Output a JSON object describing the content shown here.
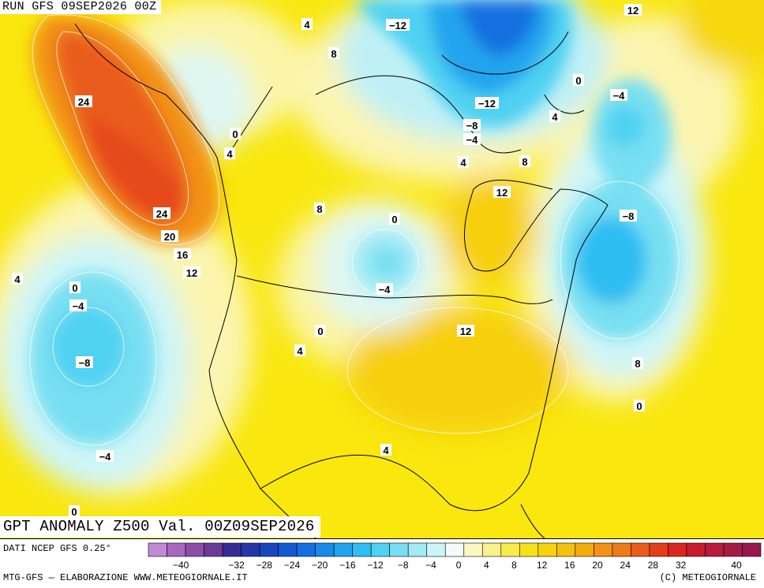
{
  "header": {
    "run_title": "RUN GFS 09SEP2026 00Z"
  },
  "map": {
    "caption": "GPT ANOMALY Z500 Val. 00Z09SEP2026",
    "contour_labels": [
      "24",
      "24",
      "20",
      "16",
      "12",
      "0",
      "4",
      "8",
      "4",
      "4",
      "8",
      "-12",
      "-12",
      "-8",
      "-4",
      "4",
      "8",
      "12",
      "0",
      "-4",
      "0",
      "4",
      "12",
      "-8",
      "-4",
      "0",
      "4",
      "12",
      "0",
      "-4",
      "-8",
      "-4",
      "0",
      "4",
      "8",
      "0"
    ]
  },
  "colorbar": {
    "ticks": [
      "-40",
      "-32",
      "-28",
      "-24",
      "-20",
      "-16",
      "-12",
      "-8",
      "-4",
      "0",
      "4",
      "8",
      "12",
      "16",
      "20",
      "24",
      "28",
      "32",
      "40"
    ],
    "colors": [
      "#c08ad4",
      "#a968c0",
      "#8e4ea8",
      "#6c3a98",
      "#3a2a95",
      "#2536a8",
      "#1846bf",
      "#1358d4",
      "#1470e0",
      "#1a8ae8",
      "#20a4ee",
      "#2fbdf2",
      "#4fd1f2",
      "#78dff2",
      "#a3ebf4",
      "#cdf5f8",
      "#f4faf8",
      "#fbf7c4",
      "#f9f190",
      "#f8ec4a",
      "#f7e218",
      "#f7d20e",
      "#f5c10c",
      "#f4ab10",
      "#f29216",
      "#ef7a18",
      "#ea5c1a",
      "#e33e1c",
      "#d8261e",
      "#c81c2c",
      "#b81c3c",
      "#a31c44",
      "#96184e"
    ]
  },
  "footer": {
    "source": "DATI NCEP GFS 0.25°",
    "credit_left": "MTG-GFS — ELABORAZIONE WWW.METEOGIORNALE.IT",
    "credit_right": "(C) METEOGIORNALE"
  }
}
